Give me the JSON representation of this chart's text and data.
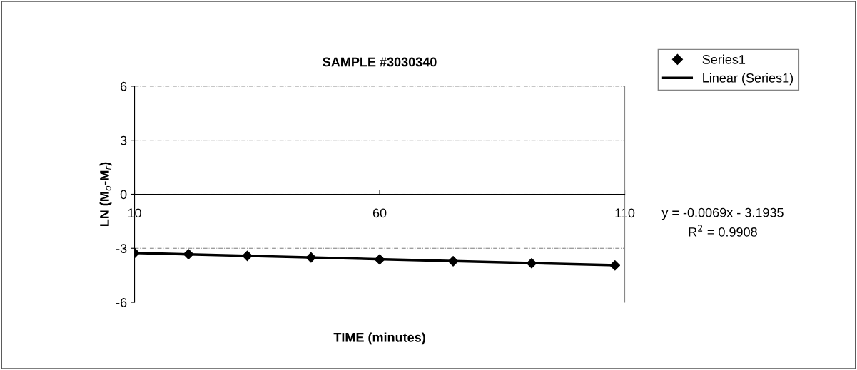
{
  "chart_data": {
    "type": "scatter",
    "title": "SAMPLE #3030340",
    "xlabel": "TIME (minutes)",
    "ylabel": "LN (M$_{o}$-M$_{r}$)",
    "x": [
      10,
      21,
      33,
      46,
      60,
      75,
      91,
      108
    ],
    "series": [
      {
        "name": "Series1",
        "color": "#000000",
        "marker": "diamond",
        "values": [
          -3.26,
          -3.33,
          -3.42,
          -3.51,
          -3.62,
          -3.72,
          -3.83,
          -3.95
        ]
      },
      {
        "name": "Linear (Series1)",
        "type": "line",
        "color": "#000000",
        "x": [
          10,
          108
        ],
        "values": [
          -3.26,
          -3.94
        ]
      }
    ],
    "xlim": [
      10,
      110
    ],
    "xticks": [
      10,
      60,
      110
    ],
    "ylim": [
      -6,
      6
    ],
    "yticks": [
      -6,
      -3,
      0,
      3,
      6
    ],
    "grid": "y",
    "legend": "top right",
    "annotations": [
      "y = -0.0069x - 3.1935",
      "R$^{2}$ = 0.9908"
    ]
  }
}
